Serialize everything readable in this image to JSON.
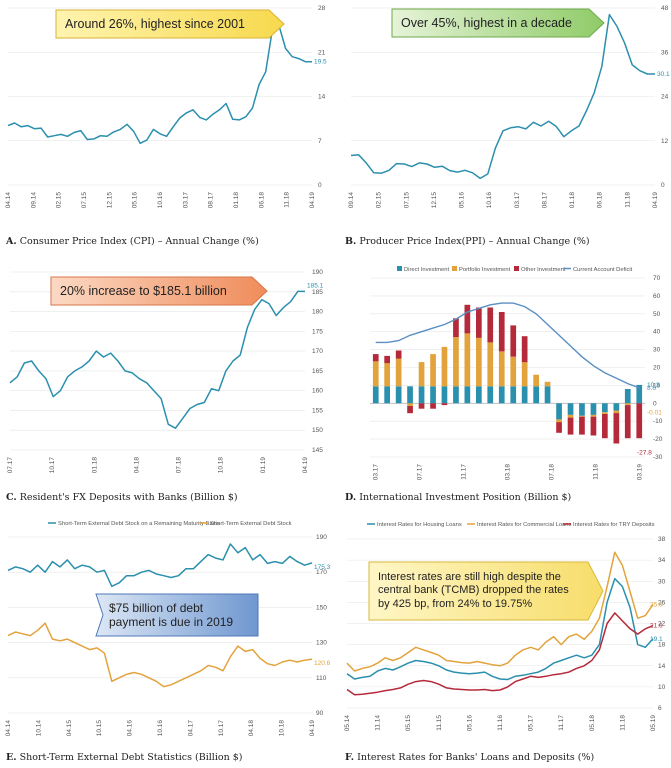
{
  "colors": {
    "teal": "#2b8fae",
    "orange": "#e2a33c",
    "red": "#b52a3a",
    "blue": "#5a8fc4",
    "grid": "#e6e6e6"
  },
  "panels": [
    {
      "id": "A",
      "caption_letter": "A.",
      "caption_text": "Consumer Price Index (CPI) – Annual Change (%)",
      "callout": "Around 26%, highest since 2001",
      "end_label": "19.5",
      "chart_data": {
        "type": "line",
        "x_ticks": [
          "04.14",
          "09.14",
          "02.15",
          "07.15",
          "12.15",
          "05.16",
          "10.16",
          "03.17",
          "08.17",
          "01.18",
          "06.18",
          "11.18",
          "04.19"
        ],
        "y_ticks": [
          0,
          7,
          14,
          21,
          28
        ],
        "ylim": [
          0,
          28
        ],
        "series": [
          {
            "values": [
              9.4,
              9.8,
              9.2,
              9.4,
              8.9,
              9.0,
              7.6,
              7.8,
              8.0,
              7.7,
              8.3,
              8.6,
              7.2,
              7.3,
              7.8,
              7.7,
              8.4,
              8.8,
              9.6,
              8.5,
              6.6,
              7.1,
              8.8,
              8.1,
              7.7,
              9.2,
              10.6,
              11.4,
              11.9,
              10.7,
              10.3,
              11.2,
              11.9,
              12.9,
              10.4,
              10.3,
              10.8,
              12.2,
              15.9,
              17.9,
              24.5,
              25.2,
              21.6,
              20.3,
              20.0,
              19.5,
              19.5
            ]
          }
        ]
      }
    },
    {
      "id": "B",
      "caption_letter": "B.",
      "caption_text": "Producer Price Index(PPI) – Annual Change (%)",
      "callout": "Over 45%, highest in a decade",
      "end_label": "30.1",
      "chart_data": {
        "type": "line",
        "x_ticks": [
          "09.14",
          "02.15",
          "07.15",
          "12.15",
          "05.16",
          "10.16",
          "03.17",
          "08.17",
          "01.18",
          "06.18",
          "11.18",
          "04.19"
        ],
        "y_ticks": [
          0,
          12,
          24,
          36,
          48
        ],
        "ylim": [
          0,
          48
        ],
        "series": [
          {
            "values": [
              8.0,
              8.2,
              6.0,
              3.3,
              3.2,
              4.0,
              5.8,
              5.7,
              5.0,
              6.0,
              5.7,
              4.8,
              5.1,
              3.9,
              3.5,
              4.0,
              3.3,
              1.8,
              3.0,
              10.0,
              14.7,
              15.5,
              15.8,
              15.2,
              17.0,
              16.0,
              17.3,
              15.9,
              13.1,
              14.7,
              16.0,
              20.2,
              25.0,
              32.1,
              46.2,
              43.0,
              38.5,
              32.6,
              31.0,
              30.1,
              30.1
            ]
          }
        ]
      }
    },
    {
      "id": "C",
      "caption_letter": "C.",
      "caption_text": "Resident's FX Deposits with Banks (Billion $)",
      "callout": "20% increase to $185.1 billion",
      "end_label": "185.1",
      "chart_data": {
        "type": "line",
        "x_ticks": [
          "07.17",
          "10.17",
          "01.18",
          "04.18",
          "07.18",
          "10.18",
          "01.19",
          "04.19"
        ],
        "y_ticks": [
          145,
          150,
          155,
          160,
          165,
          170,
          175,
          180,
          185,
          190
        ],
        "ylim": [
          145,
          190
        ],
        "series": [
          {
            "values": [
              162.0,
              163.5,
              167.0,
              167.5,
              165.0,
              163.0,
              158.5,
              160.0,
              163.5,
              165.0,
              166.0,
              167.5,
              170.0,
              168.5,
              169.5,
              167.5,
              165.0,
              164.5,
              163.0,
              162.0,
              160.0,
              158.0,
              151.5,
              150.5,
              153.0,
              155.5,
              156.5,
              157.0,
              160.5,
              160.0,
              165.0,
              167.5,
              169.0,
              176.0,
              180.5,
              183.0,
              182.0,
              179.0,
              181.0,
              182.5,
              185.1,
              185.1
            ]
          }
        ]
      }
    },
    {
      "id": "D",
      "caption_letter": "D.",
      "caption_text": "International Investment Position (Billion $)",
      "legend": [
        "Direct Investment",
        "Portfolio Investment",
        "Other Investment",
        "Current Account Deficit"
      ],
      "end_labels": [
        "8.6",
        "10.3",
        "-0.01",
        "-27.8"
      ],
      "chart_data": {
        "type": "bar",
        "x_ticks": [
          "03.17",
          "07.17",
          "11.17",
          "03.18",
          "07.18",
          "11.18",
          "03.19"
        ],
        "y_ticks": [
          -30,
          -20,
          -10,
          0,
          10,
          20,
          30,
          40,
          50,
          60,
          70
        ],
        "ylim": [
          -30,
          70
        ],
        "series": [
          {
            "name": "Direct Investment",
            "values": [
              9.5,
              9.5,
              9.5,
              9.5,
              9.5,
              9.5,
              9.5,
              9.5,
              9.5,
              9.5,
              9.5,
              9.5,
              9.5,
              9.5,
              9.5,
              9.5,
              -9.0,
              -6.5,
              -7.0,
              -6.5,
              -5.0,
              -4.0,
              8.0,
              10.3
            ]
          },
          {
            "name": "Portfolio Investment",
            "values": [
              14.0,
              13.0,
              15.5,
              -1.5,
              13.5,
              18.0,
              22.0,
              27.5,
              29.5,
              27.0,
              24.5,
              19.5,
              16.5,
              13.5,
              6.5,
              2.5,
              -1.5,
              -1.5,
              -0.5,
              -1.0,
              -1.0,
              -1.5,
              -1.0,
              -0.01
            ]
          },
          {
            "name": "Other Investment",
            "values": [
              4.0,
              4.0,
              4.5,
              -4.0,
              -3.0,
              -3.0,
              -1.0,
              10.5,
              16.0,
              17.0,
              19.5,
              22.0,
              17.5,
              14.5,
              0.0,
              0.0,
              -6.0,
              -9.5,
              -10.0,
              -10.5,
              -13.5,
              -17.0,
              -18.5,
              -19.5
            ]
          },
          {
            "name": "Current Account Deficit",
            "values": [
              34,
              34,
              35,
              38,
              40,
              42,
              44,
              47,
              51,
              53,
              55,
              56,
              56,
              54,
              50,
              44,
              38,
              32,
              26,
              21,
              17,
              14,
              11,
              8.6
            ]
          }
        ]
      }
    },
    {
      "id": "E",
      "caption_letter": "E.",
      "caption_text": "Short-Term External Debt Statistics (Billion $)",
      "legend": [
        "Short-Term External Debt Stock on a Remaining Maturity Basis",
        "Short-Term External Debt Stock"
      ],
      "callout": "$75 billion of debt payment is due in 2019",
      "end_labels": [
        "175.3",
        "120.6"
      ],
      "chart_data": {
        "type": "line",
        "x_ticks": [
          "04.14",
          "10.14",
          "04.15",
          "10.15",
          "04.16",
          "10.16",
          "04.17",
          "10.17",
          "04.18",
          "10.18",
          "04.19"
        ],
        "y_ticks": [
          90,
          110,
          130,
          150,
          170,
          190
        ],
        "ylim": [
          90,
          190
        ],
        "series": [
          {
            "name": "Short-Term External Debt Stock on a Remaining Maturity Basis",
            "values": [
              171,
              173,
              172,
              170,
              174,
              170,
              176,
              173,
              177,
              172,
              174,
              173,
              170,
              171,
              162,
              164,
              168,
              168,
              170,
              171,
              169,
              168,
              167,
              168,
              172,
              172,
              176,
              180,
              178,
              177,
              186,
              181,
              184,
              177,
              180,
              175,
              176,
              175,
              179,
              176,
              174,
              175.3
            ]
          },
          {
            "name": "Short-Term External Debt Stock",
            "values": [
              134,
              136,
              135,
              134,
              137,
              141,
              132,
              131,
              132,
              130,
              128,
              126,
              127,
              124,
              108,
              110,
              112,
              113,
              112,
              110,
              108,
              105,
              106,
              108,
              110,
              112,
              114,
              117,
              116,
              114,
              122,
              128,
              125,
              126,
              121,
              118,
              117,
              119,
              120,
              119,
              120,
              120.6
            ]
          }
        ]
      }
    },
    {
      "id": "F",
      "caption_letter": "F.",
      "caption_text": "Interest Rates for Banks' Loans and Deposits (%)",
      "legend": [
        "Interest Rates for Housing Loans",
        "Interest Rates for Commercial Loans",
        "Interest Rates for TRY Deposits"
      ],
      "callout": "Interest rates are still high despite the central bank (TCMB) dropped the rates by 425 bp, from 24% to 19.75%",
      "end_labels": [
        "25.6",
        "21.6",
        "19.1"
      ],
      "chart_data": {
        "type": "line",
        "x_ticks": [
          "05.14",
          "11.14",
          "05.15",
          "11.15",
          "05.16",
          "11.16",
          "05.17",
          "11.17",
          "05.18",
          "11.18",
          "05.19"
        ],
        "y_ticks": [
          6,
          10,
          14,
          18,
          22,
          26,
          30,
          34,
          38
        ],
        "ylim": [
          6,
          38
        ],
        "series": [
          {
            "name": "Interest Rates for Housing Loans",
            "values": [
              12.5,
              11.5,
              11.8,
              12.0,
              13.0,
              13.5,
              13.2,
              13.8,
              14.5,
              15.0,
              14.8,
              14.5,
              14.0,
              13.2,
              12.8,
              12.6,
              12.5,
              12.6,
              12.8,
              12.0,
              11.5,
              11.4,
              12.0,
              12.2,
              12.5,
              12.8,
              13.5,
              14.5,
              15.0,
              15.5,
              16.0,
              15.5,
              16.0,
              18.0,
              26.0,
              30.5,
              29.0,
              25.0,
              18.0,
              17.5,
              19.1
            ]
          },
          {
            "name": "Interest Rates for Commercial Loans",
            "values": [
              14.5,
              13.0,
              13.5,
              13.8,
              14.5,
              15.5,
              15.0,
              15.5,
              16.5,
              17.5,
              17.0,
              16.5,
              16.0,
              15.0,
              14.8,
              14.6,
              14.5,
              14.8,
              14.5,
              14.2,
              14.0,
              14.5,
              16.0,
              17.0,
              17.5,
              17.0,
              18.5,
              19.5,
              18.0,
              19.5,
              20.0,
              19.0,
              20.5,
              23.0,
              29.0,
              35.5,
              33.0,
              28.0,
              23.0,
              23.5,
              25.6
            ]
          },
          {
            "name": "Interest Rates for TRY Deposits",
            "values": [
              9.5,
              8.5,
              8.6,
              8.8,
              9.0,
              9.3,
              9.5,
              9.8,
              10.5,
              11.0,
              11.2,
              11.0,
              10.5,
              9.8,
              9.6,
              9.5,
              9.4,
              9.4,
              9.5,
              9.3,
              9.4,
              10.0,
              11.0,
              11.5,
              12.0,
              11.8,
              12.0,
              12.3,
              12.5,
              12.8,
              13.5,
              14.0,
              15.0,
              17.0,
              22.0,
              24.0,
              22.5,
              21.0,
              20.0,
              21.0,
              21.6
            ]
          }
        ]
      }
    }
  ]
}
